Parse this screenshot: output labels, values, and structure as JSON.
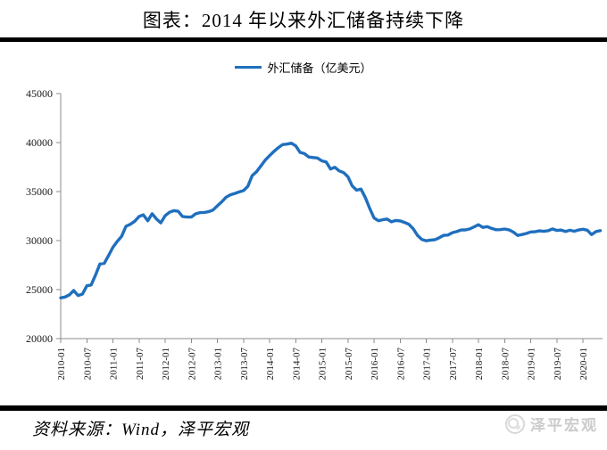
{
  "title": "图表：2014 年以来外汇储备持续下降",
  "legend": {
    "label": "外汇储备（亿美元）"
  },
  "footer": {
    "source": "资料来源：Wind，泽平宏观",
    "watermark": "泽平宏观"
  },
  "colors": {
    "series_line": "#1F6FBE",
    "axis": "#8c8c8c",
    "tick_label": "#1a1a1a",
    "divider": "#000000",
    "watermark": "#cbcbcb"
  },
  "chart_data": {
    "type": "line",
    "title": "图表：2014 年以来外汇储备持续下降",
    "series_name": "外汇储备（亿美元）",
    "ylabel": "",
    "xlabel": "",
    "ylim": [
      20000,
      45000
    ],
    "yticks": [
      20000,
      25000,
      30000,
      35000,
      40000,
      45000
    ],
    "grid": false,
    "legend_position": "top-center",
    "x_monthly_from": "2010-01",
    "x_tick_labels": [
      "2010-01",
      "2010-07",
      "2011-01",
      "2011-07",
      "2012-01",
      "2012-07",
      "2013-01",
      "2013-07",
      "2014-01",
      "2014-07",
      "2015-01",
      "2015-07",
      "2016-01",
      "2016-07",
      "2017-01",
      "2017-07",
      "2018-01",
      "2018-07",
      "2019-01",
      "2019-07",
      "2020-01"
    ],
    "x_tick_step_months": 6,
    "values": [
      24152,
      24245,
      24471,
      24905,
      24395,
      24543,
      25389,
      25474,
      26483,
      27609,
      27679,
      28473,
      29317,
      29914,
      30447,
      31458,
      31660,
      31975,
      32452,
      32625,
      32017,
      32738,
      32209,
      31811,
      32536,
      32894,
      33050,
      32989,
      32451,
      32400,
      32396,
      32729,
      32851,
      32873,
      32955,
      33116,
      33549,
      33954,
      34426,
      34670,
      34810,
      34967,
      35100,
      35530,
      36627,
      37023,
      37618,
      38213,
      38664,
      39099,
      39480,
      39789,
      39848,
      39932,
      39661,
      39000,
      38877,
      38528,
      38475,
      38430,
      38134,
      38017,
      37300,
      37481,
      37111,
      36938,
      36513,
      35573,
      35141,
      35255,
      34383,
      33304,
      32309,
      32023,
      32126,
      32197,
      31917,
      32052,
      32011,
      31852,
      31664,
      31207,
      30516,
      30105,
      29982,
      30051,
      30091,
      30295,
      30536,
      30568,
      30807,
      30915,
      31085,
      31092,
      31193,
      31399,
      31615,
      31345,
      31428,
      31249,
      31106,
      31121,
      31179,
      31097,
      30870,
      30531,
      30617,
      30727,
      30879,
      30902,
      30988,
      30950,
      31010,
      31192,
      31037,
      31072,
      30924,
      31052,
      30956,
      31079,
      31155,
      31067,
      30606,
      30915,
      31017
    ]
  }
}
